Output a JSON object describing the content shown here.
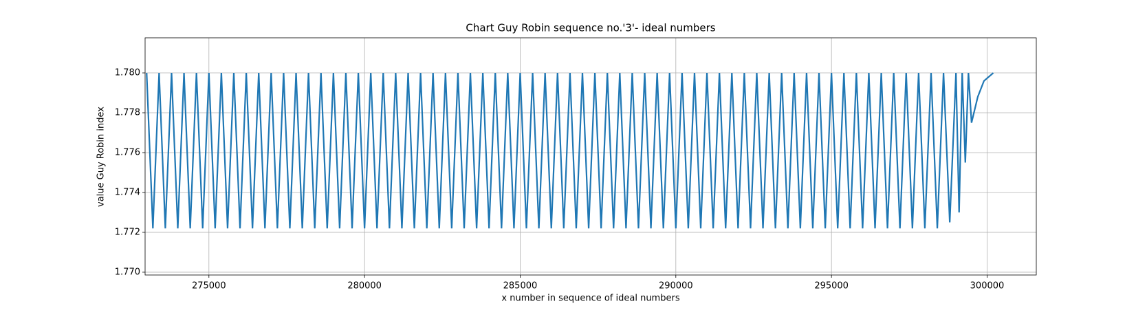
{
  "chart_data": {
    "type": "line",
    "title": "Chart Guy Robin sequence no.'3'- ideal numbers",
    "x_label": "x number in sequence of ideal numbers",
    "y_label": "value Guy Robin index",
    "grid": true,
    "xlim": [
      272950,
      301580
    ],
    "ylim": [
      1.76986,
      1.78176
    ],
    "xticks": [
      275000,
      280000,
      285000,
      290000,
      295000,
      300000
    ],
    "yticks": [
      {
        "value": 1.77,
        "label": "1.770"
      },
      {
        "value": 1.772,
        "label": "1.772"
      },
      {
        "value": 1.774,
        "label": "1.774"
      },
      {
        "value": 1.776,
        "label": "1.776"
      },
      {
        "value": 1.778,
        "label": "1.778"
      },
      {
        "value": 1.78,
        "label": "1.780"
      }
    ],
    "x": [
      273000,
      273200,
      273400,
      273600,
      273800,
      274000,
      274200,
      274400,
      274600,
      274800,
      275000,
      275200,
      275400,
      275600,
      275800,
      276000,
      276200,
      276400,
      276600,
      276800,
      277000,
      277200,
      277400,
      277600,
      277800,
      278000,
      278200,
      278400,
      278600,
      278800,
      279000,
      279200,
      279400,
      279600,
      279800,
      280000,
      280200,
      280400,
      280600,
      280800,
      281000,
      281200,
      281400,
      281600,
      281800,
      282000,
      282200,
      282400,
      282600,
      282800,
      283000,
      283200,
      283400,
      283600,
      283800,
      284000,
      284200,
      284400,
      284600,
      284800,
      285000,
      285200,
      285400,
      285600,
      285800,
      286000,
      286200,
      286400,
      286600,
      286800,
      287000,
      287200,
      287400,
      287600,
      287800,
      288000,
      288200,
      288400,
      288600,
      288800,
      289000,
      289200,
      289400,
      289600,
      289800,
      290000,
      290200,
      290400,
      290600,
      290800,
      291000,
      291200,
      291400,
      291600,
      291800,
      292000,
      292200,
      292400,
      292600,
      292800,
      293000,
      293200,
      293400,
      293600,
      293800,
      294000,
      294200,
      294400,
      294600,
      294800,
      295000,
      295200,
      295400,
      295600,
      295800,
      296000,
      296200,
      296400,
      296600,
      296800,
      297000,
      297200,
      297400,
      297600,
      297800,
      298000,
      298200,
      298400,
      298600,
      298800,
      299000,
      299100,
      299200,
      299300,
      299400,
      299500,
      299700,
      299900,
      300200
    ],
    "series": [
      {
        "color": "#1f77b4",
        "values": [
          1.78,
          1.7722,
          1.78,
          1.7722,
          1.78,
          1.7722,
          1.78,
          1.7722,
          1.78,
          1.7722,
          1.78,
          1.7722,
          1.78,
          1.7722,
          1.78,
          1.7722,
          1.78,
          1.7722,
          1.78,
          1.7722,
          1.78,
          1.7722,
          1.78,
          1.7722,
          1.78,
          1.7722,
          1.78,
          1.7722,
          1.78,
          1.7722,
          1.78,
          1.7722,
          1.78,
          1.7722,
          1.78,
          1.7722,
          1.78,
          1.7722,
          1.78,
          1.7722,
          1.78,
          1.7722,
          1.78,
          1.7722,
          1.78,
          1.7722,
          1.78,
          1.7722,
          1.78,
          1.7722,
          1.78,
          1.7722,
          1.78,
          1.7722,
          1.78,
          1.7722,
          1.78,
          1.7722,
          1.78,
          1.7722,
          1.78,
          1.7722,
          1.78,
          1.7722,
          1.78,
          1.7722,
          1.78,
          1.7722,
          1.78,
          1.7722,
          1.78,
          1.7722,
          1.78,
          1.7722,
          1.78,
          1.7722,
          1.78,
          1.7722,
          1.78,
          1.7722,
          1.78,
          1.7722,
          1.78,
          1.7722,
          1.78,
          1.7722,
          1.78,
          1.7722,
          1.78,
          1.7722,
          1.78,
          1.7722,
          1.78,
          1.7722,
          1.78,
          1.7722,
          1.78,
          1.7722,
          1.78,
          1.7722,
          1.78,
          1.7722,
          1.78,
          1.7722,
          1.78,
          1.7722,
          1.78,
          1.7722,
          1.78,
          1.7722,
          1.78,
          1.7722,
          1.78,
          1.7722,
          1.78,
          1.7722,
          1.78,
          1.7722,
          1.78,
          1.7722,
          1.78,
          1.7722,
          1.78,
          1.7722,
          1.78,
          1.7722,
          1.78,
          1.7722,
          1.78,
          1.7725,
          1.78,
          1.773,
          1.78,
          1.7755,
          1.78,
          1.7775,
          1.7788,
          1.7796,
          1.78
        ]
      }
    ]
  }
}
